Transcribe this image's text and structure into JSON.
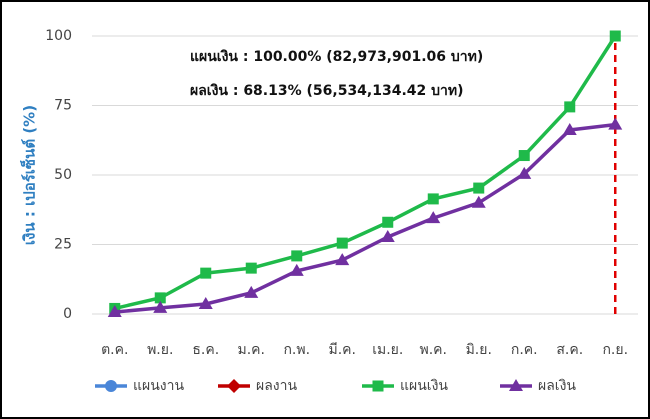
{
  "chart_data": {
    "type": "line",
    "annotations": [
      "แผนเงิน : 100.00% (82,973,901.06 บาท)",
      "ผลเงิน : 68.13% (56,534,134.42 บาท)"
    ],
    "y_label": "เงิน : เปอร์เซ็นต์ (%)",
    "categories": [
      "ต.ค.",
      "พ.ย.",
      "ธ.ค.",
      "ม.ค.",
      "ก.พ.",
      "มี.ค.",
      "เม.ย.",
      "พ.ค.",
      "มิ.ย.",
      "ก.ค.",
      "ส.ค.",
      "ก.ย."
    ],
    "series": [
      {
        "name": "แผนงาน",
        "color": "#4a86d8",
        "marker": "circle",
        "values": [
          null,
          null,
          null,
          null,
          null,
          null,
          null,
          null,
          null,
          null,
          null,
          null
        ]
      },
      {
        "name": "ผลงาน",
        "color": "#c00000",
        "marker": "diamond",
        "values": [
          null,
          null,
          null,
          null,
          null,
          null,
          null,
          null,
          null,
          null,
          null,
          null
        ]
      },
      {
        "name": "แผนเงิน",
        "color": "#1fba4a",
        "marker": "square",
        "values": [
          2,
          5.8,
          14.7,
          16.5,
          20.9,
          25.5,
          33,
          41.4,
          45.3,
          57,
          74.5,
          100
        ]
      },
      {
        "name": "ผลเงิน",
        "color": "#7030a0",
        "marker": "triangle",
        "values": [
          0.7,
          2.2,
          3.6,
          7.6,
          15.5,
          19.4,
          27.7,
          34.5,
          40,
          50.4,
          66.2,
          68.13
        ]
      }
    ],
    "reference_line_color": "#e00000",
    "ylim": [
      0,
      100
    ],
    "yticks": [
      0,
      25,
      50,
      75,
      100
    ],
    "grid": true,
    "legend": "bottom"
  }
}
